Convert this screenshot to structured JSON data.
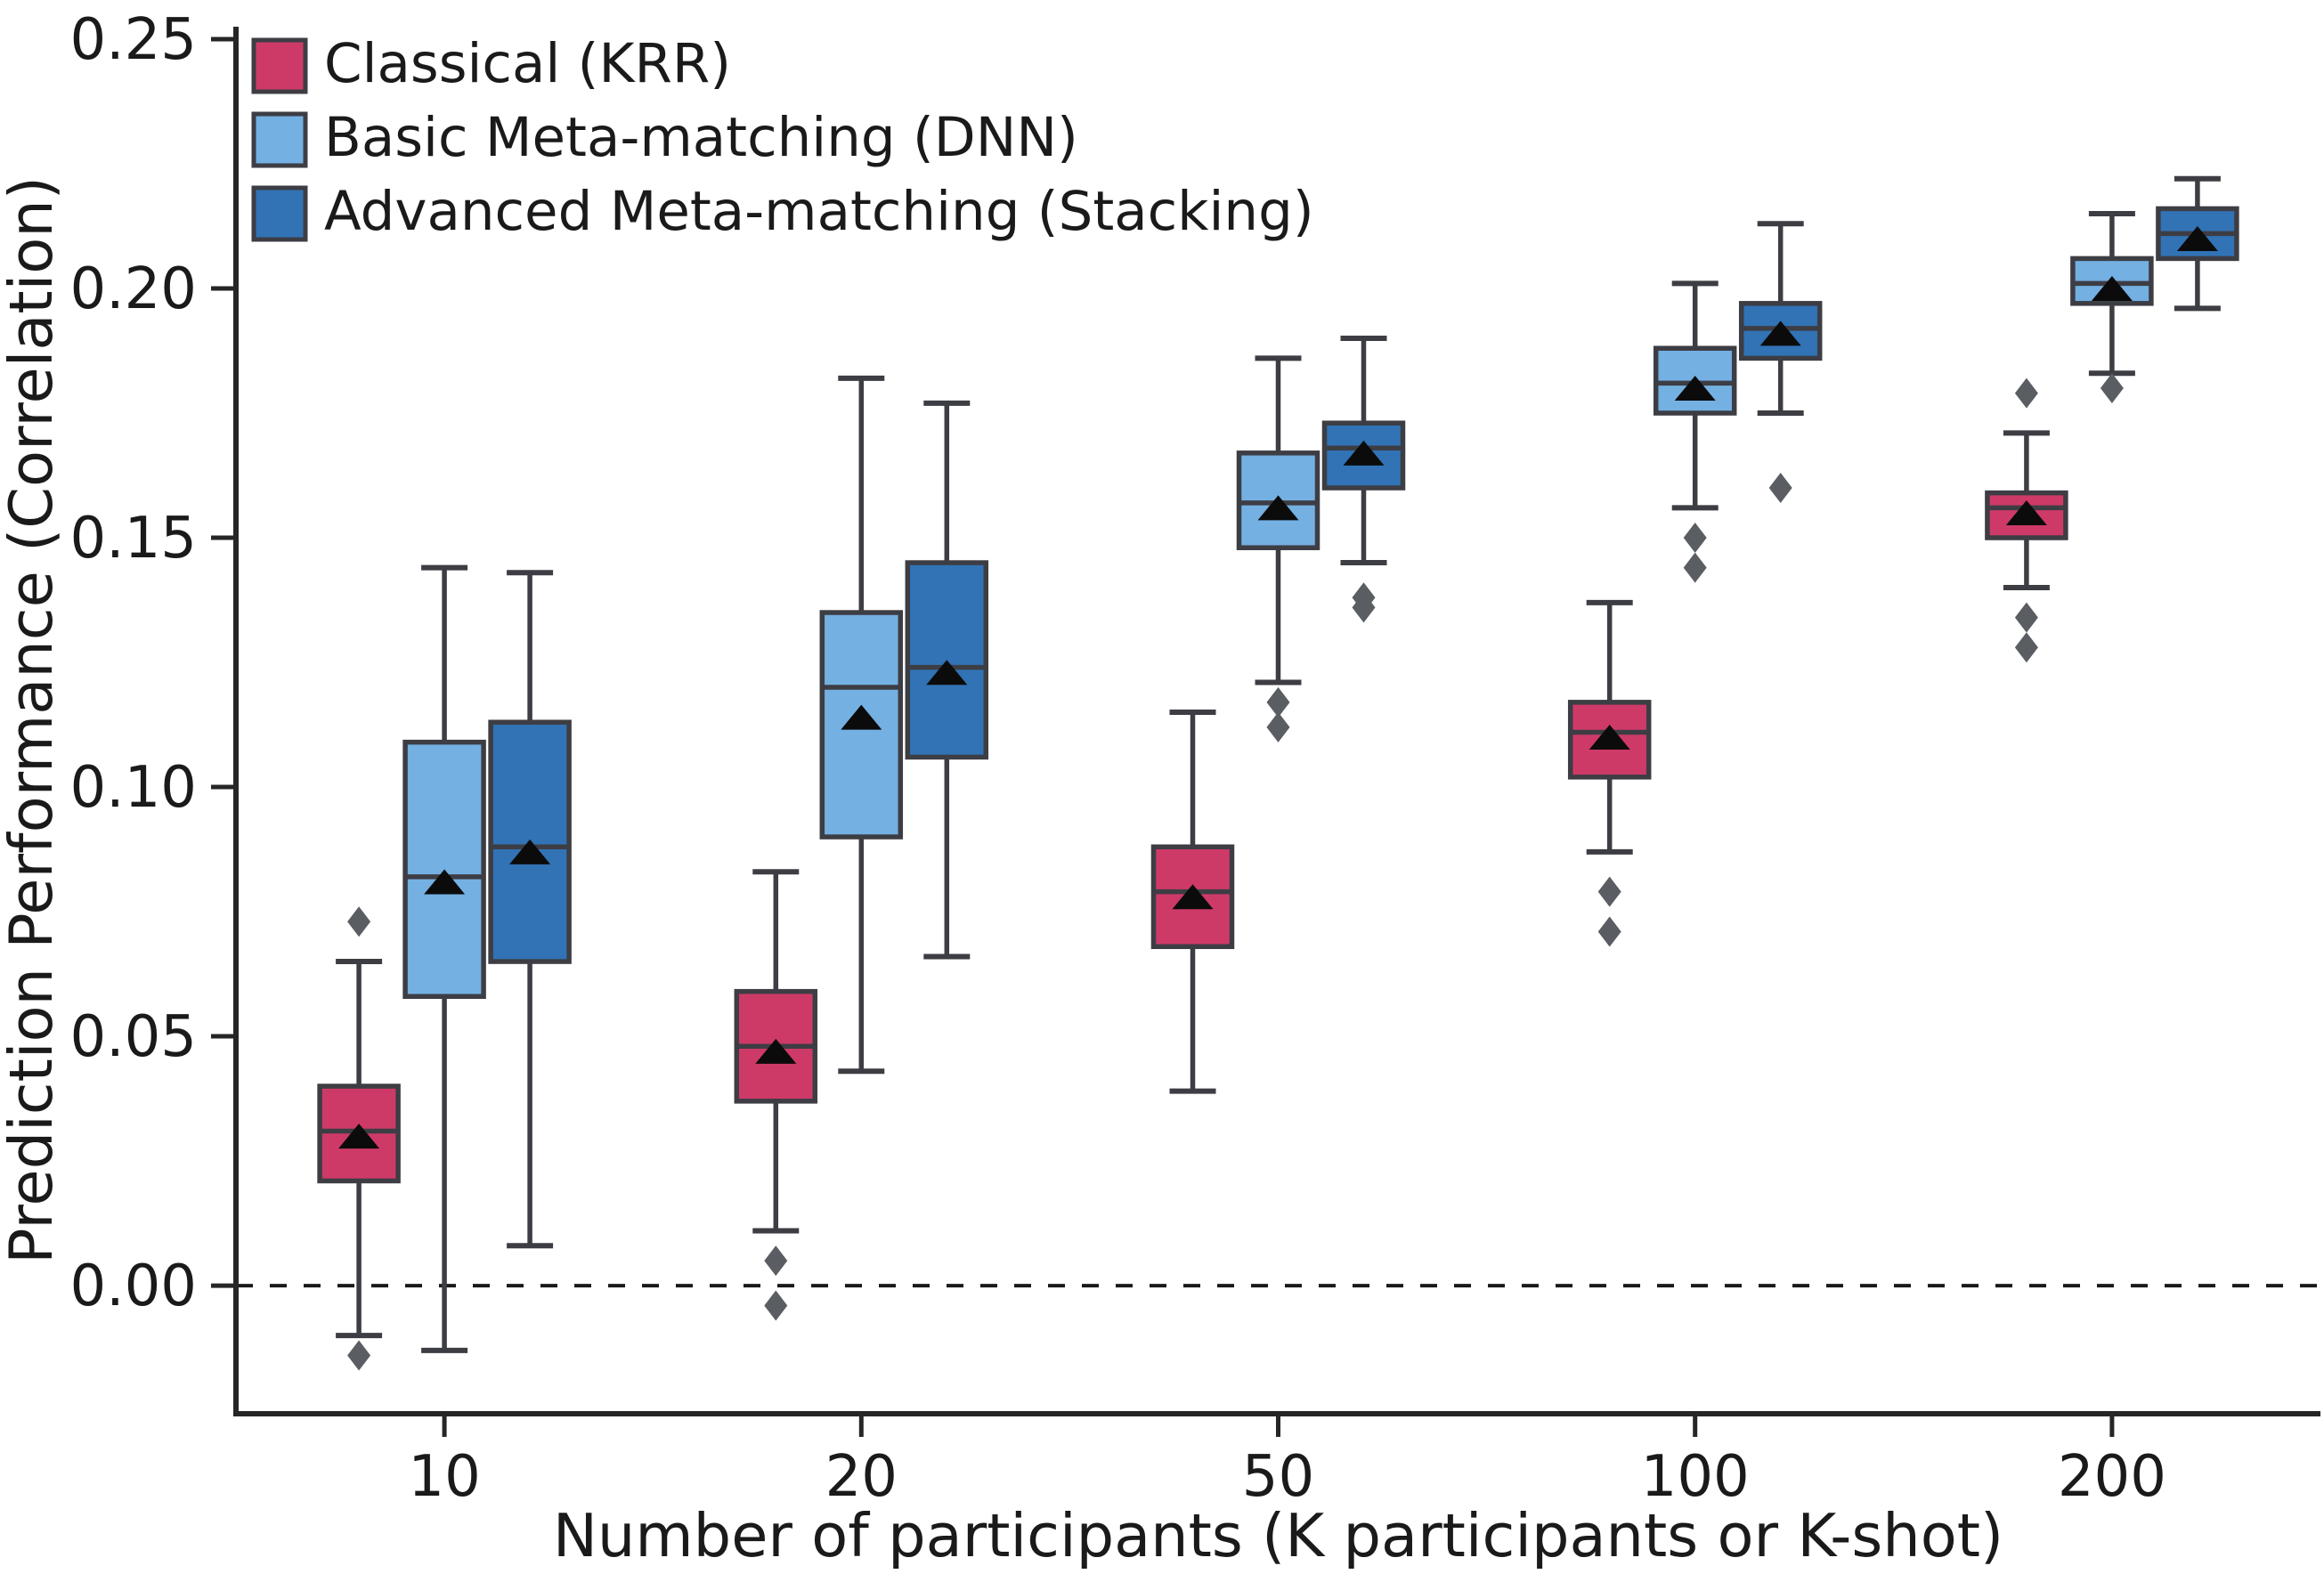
{
  "chart_data": {
    "type": "grouped_boxplot",
    "title": "",
    "xlabel": "Number of participants (K participants or K-shot)",
    "ylabel": "Prediction Performance (Correlation)",
    "categories": [
      "10",
      "20",
      "50",
      "100",
      "200"
    ],
    "yticks": {
      "labels": [
        "0.00",
        "0.05",
        "0.10",
        "0.15",
        "0.20",
        "0.25"
      ],
      "values": [
        0.0,
        0.05,
        0.1,
        0.15,
        0.2,
        0.25
      ]
    },
    "ylim": [
      -0.0257,
      0.2525
    ],
    "grid": false,
    "zero_line": {
      "value": 0.0,
      "style": "dashed",
      "color": "#1a1a1a"
    },
    "legend_position": "upper-left",
    "colors": {
      "box_edge": "#3d3d44",
      "whisker": "#3d3d44",
      "outlier": "#5a5e63",
      "mean_marker": "#0b0b0b",
      "spine": "#262626"
    },
    "series": [
      {
        "id": "classical",
        "name": "Classical (KRR)",
        "color": "#ce3a68",
        "boxes": [
          {
            "whislo": -0.01,
            "q1": 0.021,
            "med": 0.031,
            "mean": 0.03,
            "q3": 0.04,
            "whishi": 0.065,
            "outliers": [
              0.073,
              -0.014
            ]
          },
          {
            "whislo": 0.011,
            "q1": 0.037,
            "med": 0.048,
            "mean": 0.047,
            "q3": 0.059,
            "whishi": 0.083,
            "outliers": [
              0.005,
              -0.004
            ]
          },
          {
            "whislo": 0.039,
            "q1": 0.068,
            "med": 0.079,
            "mean": 0.078,
            "q3": 0.088,
            "whishi": 0.115,
            "outliers": []
          },
          {
            "whislo": 0.087,
            "q1": 0.102,
            "med": 0.111,
            "mean": 0.11,
            "q3": 0.117,
            "whishi": 0.137,
            "outliers": [
              0.079,
              0.071
            ]
          },
          {
            "whislo": 0.14,
            "q1": 0.15,
            "med": 0.156,
            "mean": 0.155,
            "q3": 0.159,
            "whishi": 0.171,
            "outliers": [
              0.179,
              0.134,
              0.128
            ]
          }
        ]
      },
      {
        "id": "basic",
        "name": "Basic Meta-matching (DNN)",
        "color": "#74b0e2",
        "boxes": [
          {
            "whislo": -0.013,
            "q1": 0.058,
            "med": 0.082,
            "mean": 0.081,
            "q3": 0.109,
            "whishi": 0.144,
            "outliers": []
          },
          {
            "whislo": 0.043,
            "q1": 0.09,
            "med": 0.12,
            "mean": 0.114,
            "q3": 0.135,
            "whishi": 0.182,
            "outliers": []
          },
          {
            "whislo": 0.121,
            "q1": 0.148,
            "med": 0.157,
            "mean": 0.156,
            "q3": 0.167,
            "whishi": 0.186,
            "outliers": [
              0.117,
              0.112
            ]
          },
          {
            "whislo": 0.156,
            "q1": 0.175,
            "med": 0.181,
            "mean": 0.18,
            "q3": 0.188,
            "whishi": 0.201,
            "outliers": [
              0.15,
              0.144
            ]
          },
          {
            "whislo": 0.183,
            "q1": 0.197,
            "med": 0.201,
            "mean": 0.2,
            "q3": 0.206,
            "whishi": 0.215,
            "outliers": [
              0.18
            ]
          }
        ]
      },
      {
        "id": "advanced",
        "name": "Advanced Meta-matching (Stacking)",
        "color": "#3173b5",
        "boxes": [
          {
            "whislo": 0.008,
            "q1": 0.065,
            "med": 0.088,
            "mean": 0.087,
            "q3": 0.113,
            "whishi": 0.143,
            "outliers": []
          },
          {
            "whislo": 0.066,
            "q1": 0.106,
            "med": 0.124,
            "mean": 0.123,
            "q3": 0.145,
            "whishi": 0.177,
            "outliers": []
          },
          {
            "whislo": 0.145,
            "q1": 0.16,
            "med": 0.168,
            "mean": 0.167,
            "q3": 0.173,
            "whishi": 0.19,
            "outliers": [
              0.138,
              0.136
            ]
          },
          {
            "whislo": 0.175,
            "q1": 0.186,
            "med": 0.192,
            "mean": 0.191,
            "q3": 0.197,
            "whishi": 0.213,
            "outliers": [
              0.16
            ]
          },
          {
            "whislo": 0.196,
            "q1": 0.206,
            "med": 0.211,
            "mean": 0.21,
            "q3": 0.216,
            "whishi": 0.222,
            "outliers": []
          }
        ]
      }
    ]
  }
}
